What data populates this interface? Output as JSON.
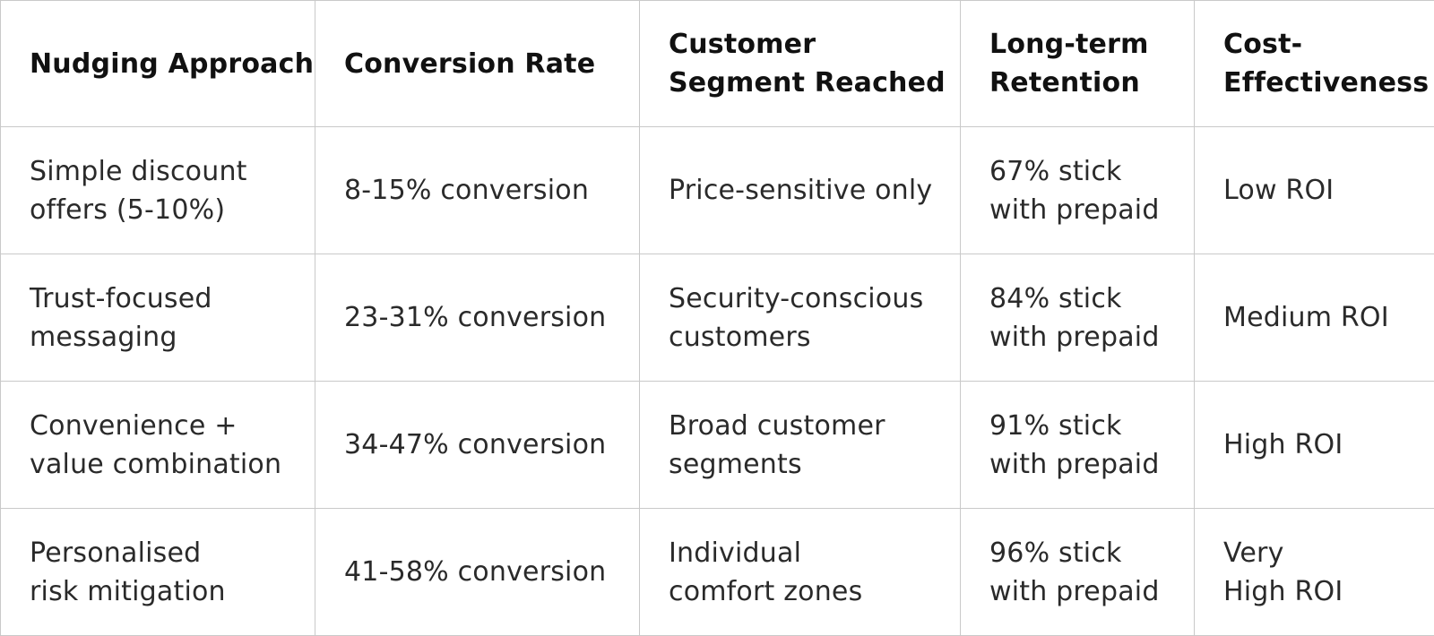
{
  "table": {
    "headers": [
      "Nudging Approach",
      "Conversion Rate",
      "Customer\nSegment Reached",
      "Long-term\nRetention",
      "Cost-\nEffectiveness"
    ],
    "rows": [
      [
        "Simple discount\noffers (5-10%)",
        "8-15% conversion",
        "Price-sensitive only",
        "67% stick\nwith prepaid",
        "Low ROI"
      ],
      [
        "Trust-focused\nmessaging",
        "23-31% conversion",
        "Security-conscious\ncustomers",
        "84% stick\nwith prepaid",
        "Medium ROI"
      ],
      [
        "Convenience +\nvalue combination",
        "34-47% conversion",
        "Broad customer\nsegments",
        "91% stick\nwith prepaid",
        "High ROI"
      ],
      [
        "Personalised\nrisk mitigation",
        "41-58% conversion",
        "Individual\ncomfort zones",
        "96% stick\nwith prepaid",
        "Very\nHigh ROI"
      ]
    ]
  }
}
